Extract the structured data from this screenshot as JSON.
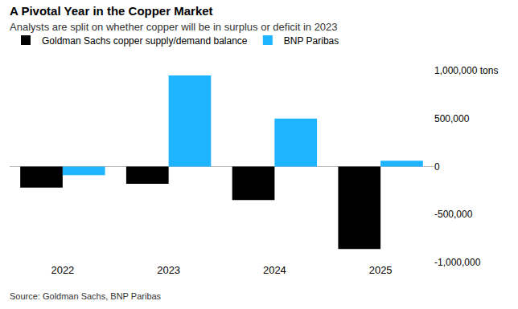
{
  "chart_data": {
    "type": "bar",
    "title": "A Pivotal Year in the Copper Market",
    "subtitle": "Analysts are split on whether copper will be in surplus or deficit in 2023",
    "source": "Source: Goldman Sachs, BNP Paribas",
    "categories": [
      "2022",
      "2023",
      "2024",
      "2025"
    ],
    "series": [
      {
        "name": "Goldman Sachs copper supply/demand balance",
        "color": "#000000",
        "values": [
          -220000,
          -180000,
          -350000,
          -860000
        ]
      },
      {
        "name": "BNP Paribas",
        "color": "#1eb4ff",
        "values": [
          -90000,
          950000,
          500000,
          60000
        ]
      }
    ],
    "ylim": [
      -1000000,
      1000000
    ],
    "yticks": [
      {
        "value": -1000000,
        "label": "-1,000,000"
      },
      {
        "value": -500000,
        "label": "-500,000"
      },
      0,
      {
        "value": 500000,
        "label": "500,000"
      },
      {
        "value": 1000000,
        "label": "1,000,000 tons"
      }
    ],
    "grid": false,
    "legend": "top left"
  }
}
